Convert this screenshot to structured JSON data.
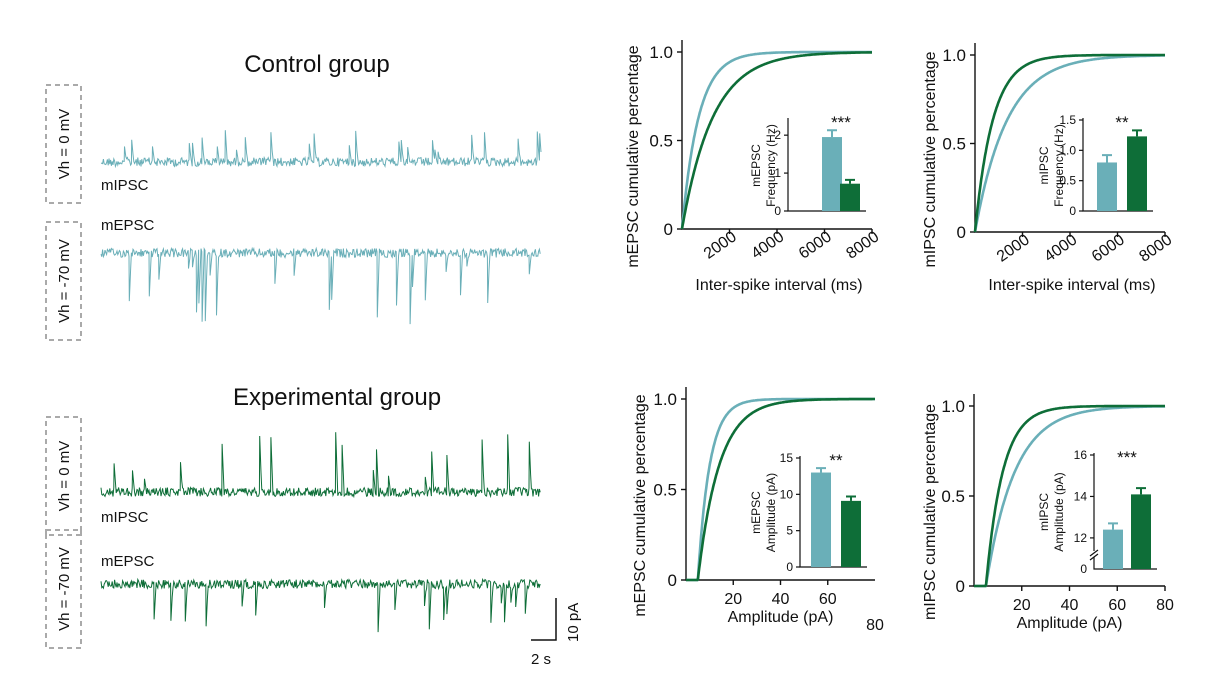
{
  "colors": {
    "control": "#6AAFB8",
    "experimental": "#0E6E38",
    "axis": "#111111",
    "box_border": "#aaaaaa"
  },
  "traces": {
    "groups": [
      {
        "title": "Control group",
        "color_key": "control",
        "rows": [
          {
            "holding": "Vh = 0 mV",
            "label": "mIPSC",
            "kind": "ipsc"
          },
          {
            "holding": "Vh = -70 mV",
            "label": "mEPSC",
            "kind": "epsc"
          }
        ]
      },
      {
        "title": "Experimental group",
        "color_key": "experimental",
        "rows": [
          {
            "holding": "Vh = 0 mV",
            "label": "mIPSC",
            "kind": "ipsc"
          },
          {
            "holding": "Vh = -70 mV",
            "label": "mEPSC",
            "kind": "epsc"
          }
        ]
      }
    ],
    "scalebar": {
      "time_label": "2 s",
      "amp_label": "10 pA"
    }
  },
  "chart_data": [
    {
      "type": "line",
      "ylabel": "mEPSC cumulative percentage",
      "xlabel": "Inter-spike interval (ms)",
      "xlim": [
        0,
        8000
      ],
      "ylim": [
        0,
        1.0
      ],
      "xticks": [
        2000,
        4000,
        6000,
        8000
      ],
      "yticks": [
        0,
        0.5,
        1.0
      ],
      "ytick_labels": [
        "0",
        "0.5",
        "1.0"
      ],
      "series": [
        {
          "color_key": "control",
          "scale": 700
        },
        {
          "color_key": "experimental",
          "scale": 1300
        }
      ],
      "inset": {
        "type": "bar",
        "ylabel": [
          "mEPSC",
          "Frequency (Hz)"
        ],
        "ylim": [
          0,
          2.4
        ],
        "yticks": [
          0,
          1,
          2
        ],
        "ytick_labels": [
          "0",
          "1",
          "2"
        ],
        "values": [
          1.95,
          0.72
        ],
        "errors": [
          0.18,
          0.1
        ],
        "colors": [
          "control",
          "experimental"
        ],
        "significance": "***"
      }
    },
    {
      "type": "line",
      "ylabel": "mIPSC cumulative percentage",
      "xlabel": "Inter-spike interval (ms)",
      "xlim": [
        0,
        8000
      ],
      "ylim": [
        0,
        1.0
      ],
      "xticks": [
        2000,
        4000,
        6000,
        8000
      ],
      "yticks": [
        0,
        0.5,
        1.0
      ],
      "ytick_labels": [
        "0",
        "0.5",
        "1.0"
      ],
      "series": [
        {
          "color_key": "control",
          "scale": 1350
        },
        {
          "color_key": "experimental",
          "scale": 750
        }
      ],
      "inset": {
        "type": "bar",
        "ylabel": [
          "mIPSC",
          "Frequency (Hz)"
        ],
        "ylim": [
          0,
          1.5
        ],
        "yticks": [
          0,
          0.5,
          1.0,
          1.5
        ],
        "ytick_labels": [
          "0",
          "0.5",
          "1.0",
          "1.5"
        ],
        "values": [
          0.8,
          1.23
        ],
        "errors": [
          0.12,
          0.1
        ],
        "colors": [
          "control",
          "experimental"
        ],
        "significance": "**"
      }
    },
    {
      "type": "line",
      "ylabel": "mEPSC cumulative percentage",
      "xlabel": "Amplitude (pA)",
      "xlim": [
        0,
        80
      ],
      "ylim": [
        0,
        1.0
      ],
      "xticks": [
        20,
        40,
        60
      ],
      "extra_label": "80",
      "yticks": [
        0,
        0.5,
        1.0
      ],
      "ytick_labels": [
        "0",
        "0.5",
        "1.0"
      ],
      "series": [
        {
          "color_key": "control",
          "onset": 5,
          "scale": 5
        },
        {
          "color_key": "experimental",
          "onset": 5,
          "scale": 9
        }
      ],
      "inset": {
        "type": "bar",
        "ylabel": [
          "mEPSC",
          "Amplitude (pA)"
        ],
        "ylim": [
          0,
          15
        ],
        "yticks": [
          0,
          5,
          10,
          15
        ],
        "ytick_labels": [
          "0",
          "5",
          "10",
          "15"
        ],
        "values": [
          13.0,
          9.1
        ],
        "errors": [
          0.6,
          0.6
        ],
        "colors": [
          "control",
          "experimental"
        ],
        "significance": "**"
      }
    },
    {
      "type": "line",
      "ylabel": "mIPSC cumulative percentage",
      "xlabel": "Amplitude (pA)",
      "xlim": [
        0,
        80
      ],
      "ylim": [
        0,
        1.0
      ],
      "xticks": [
        20,
        40,
        60,
        80
      ],
      "yticks": [
        0,
        0.5,
        1.0
      ],
      "ytick_labels": [
        "0",
        "0.5",
        "1.0"
      ],
      "series": [
        {
          "color_key": "control",
          "onset": 5,
          "scale": 12
        },
        {
          "color_key": "experimental",
          "onset": 5,
          "scale": 7
        }
      ],
      "inset": {
        "type": "bar",
        "ylabel": [
          "mIPSC",
          "Amplitude (pA)"
        ],
        "ylim": [
          10.5,
          16
        ],
        "axis_break": true,
        "yticks": [
          12,
          14,
          16
        ],
        "ytick_labels": [
          "12",
          "14",
          "16"
        ],
        "zero_label": "0",
        "values": [
          12.4,
          14.1
        ],
        "errors": [
          0.3,
          0.3
        ],
        "colors": [
          "control",
          "experimental"
        ],
        "significance": "***"
      }
    }
  ]
}
